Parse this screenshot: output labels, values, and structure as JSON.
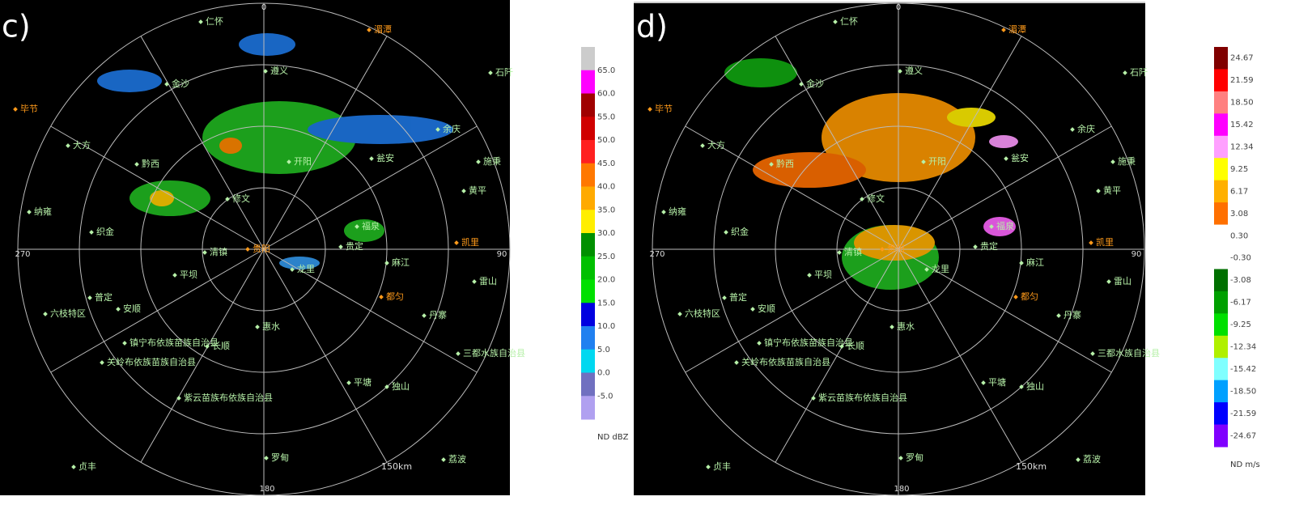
{
  "panels": [
    {
      "label": "c)",
      "azimuth": [
        "0",
        "90",
        "180",
        "270"
      ],
      "range": "150km",
      "cities": [
        "仁怀",
        "湄潭",
        "遵义",
        "金沙",
        "石阡",
        "毕节",
        "余庆",
        "大方",
        "黔西",
        "开阳",
        "瓮安",
        "施秉",
        "黄平",
        "修文",
        "纳雍",
        "织金",
        "福泉",
        "凯里",
        "贵定",
        "清镇",
        "贵阳",
        "龙里",
        "麻江",
        "雷山",
        "平坝",
        "普定",
        "安顺",
        "都匀",
        "丹寨",
        "六枝特区",
        "惠水",
        "长顺",
        "镇宁布依族苗族自治县",
        "关岭布依族苗族自治县",
        "三都水族自治县",
        "平塘",
        "独山",
        "紫云苗族布依族自治县",
        "贞丰",
        "罗甸",
        "荔波"
      ],
      "legend": {
        "values": [
          "65.0",
          "60.0",
          "55.0",
          "50.0",
          "45.0",
          "40.0",
          "35.0",
          "30.0",
          "25.0",
          "20.0",
          "15.0",
          "10.0",
          "5.0",
          "0.0",
          "-5.0"
        ],
        "unit": "ND dBZ"
      }
    },
    {
      "label": "d)",
      "azimuth": [
        "0",
        "90",
        "180",
        "270"
      ],
      "range": "150km",
      "cities": [
        "仁怀",
        "湄潭",
        "遵义",
        "金沙",
        "石阡",
        "毕节",
        "余庆",
        "大方",
        "黔西",
        "开阳",
        "瓮安",
        "施秉",
        "黄平",
        "修文",
        "纳雍",
        "织金",
        "福泉",
        "凯里",
        "贵定",
        "清镇",
        "贵阳",
        "龙里",
        "麻江",
        "雷山",
        "平坝",
        "普定",
        "安顺",
        "都匀",
        "丹寨",
        "六枝特区",
        "惠水",
        "长顺",
        "镇宁布依族苗族自治县",
        "关岭布依族苗族自治县",
        "三都水族自治县",
        "平塘",
        "独山",
        "紫云苗族布依族自治县",
        "贞丰",
        "罗甸",
        "荔波"
      ],
      "legend": {
        "values": [
          "24.67",
          "21.59",
          "18.50",
          "15.42",
          "12.34",
          "9.25",
          "6.17",
          "3.08",
          "0.30",
          "-0.30",
          "-3.08",
          "-6.17",
          "-9.25",
          "-12.34",
          "-15.42",
          "-18.50",
          "-21.59",
          "-24.67"
        ],
        "unit": "ND m/s"
      }
    }
  ]
}
